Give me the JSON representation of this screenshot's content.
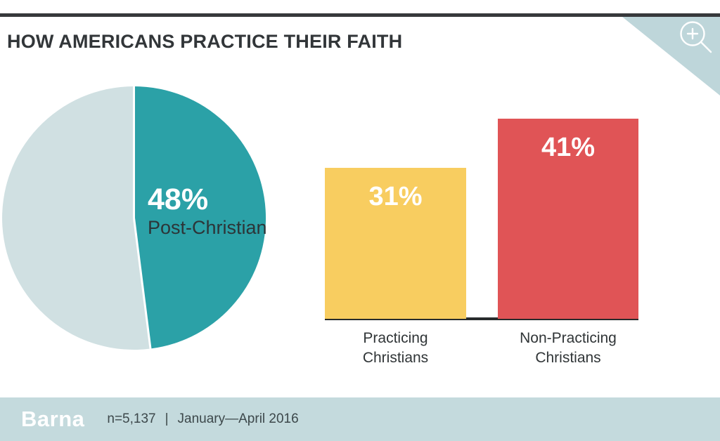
{
  "header": {
    "title": "HOW AMERICANS PRACTICE THEIR FAITH"
  },
  "zoom_button": {
    "icon": "magnifier-plus-icon"
  },
  "footer": {
    "logo": "Barna",
    "sample_size": "n=5,137",
    "separator": "|",
    "date_range": "January—April 2016"
  },
  "colors": {
    "top_line": "#37393b",
    "title_text": "#323639",
    "corner_ribbon": "#bed6da",
    "pie_teal": "#2ba1a7",
    "pie_remainder": "#d0e0e2",
    "bar_yellow": "#f8cd60",
    "bar_red": "#e05456",
    "baseline": "#282b2c",
    "footer_band": "#c4dadd",
    "label_text": "#303537"
  },
  "chart_data": [
    {
      "type": "pie",
      "slices": [
        {
          "label": "Post-Christian",
          "value": 48,
          "data_label": "48%",
          "color": "#2ba1a7"
        },
        {
          "label": "",
          "value": 52,
          "data_label": "",
          "color": "#d0e0e2"
        }
      ],
      "start_angle_deg": 0,
      "direction": "clockwise",
      "legend": "none",
      "divider_color": "#ffffff"
    },
    {
      "type": "bar",
      "categories": [
        "Practicing Christians",
        "Non-Practicing Christians"
      ],
      "values": [
        31,
        41
      ],
      "data_labels": [
        "31%",
        "41%"
      ],
      "colors": [
        "#f8cd60",
        "#e05456"
      ],
      "grid": false,
      "legend": "none",
      "xlabel": "",
      "ylabel": ""
    }
  ]
}
